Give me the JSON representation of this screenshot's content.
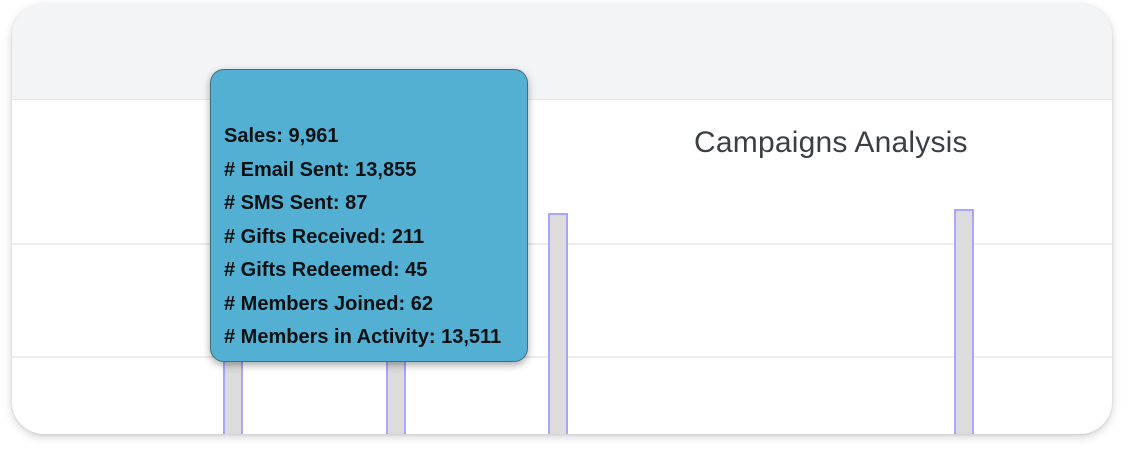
{
  "chart_data": {
    "type": "bar",
    "title": "Campaigns Analysis",
    "gridlines": true,
    "colors": {
      "bar_fill": "#dcdcdc",
      "bar_stroke": "#a6a6ff",
      "tooltip_bg": "#53b0d2",
      "header_bg": "#f3f4f6"
    },
    "tooltip": {
      "lines": [
        {
          "label": "Sales",
          "value": "9,961",
          "text": "Sales: 9,961"
        },
        {
          "label": "# Email Sent",
          "value": "13,855",
          "text": "# Email Sent: 13,855"
        },
        {
          "label": "# SMS Sent",
          "value": "87",
          "text": "# SMS Sent: 87"
        },
        {
          "label": "# Gifts Received",
          "value": "211",
          "text": "# Gifts Received: 211"
        },
        {
          "label": "# Gifts Redeemed",
          "value": "45",
          "text": "# Gifts Redeemed: 45"
        },
        {
          "label": "# Members Joined",
          "value": "62",
          "text": "# Members Joined: 62"
        },
        {
          "label": "# Members in Activity",
          "value": "13,511",
          "text": "# Members in Activity: 13,511"
        }
      ]
    }
  }
}
